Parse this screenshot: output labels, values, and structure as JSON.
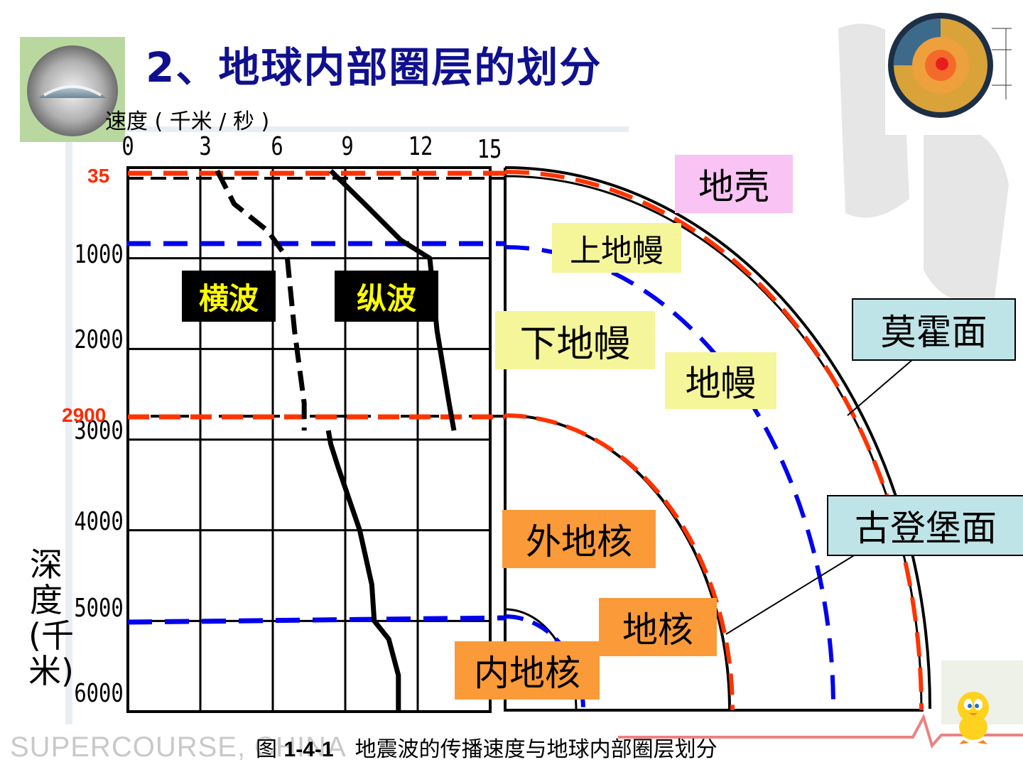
{
  "title": "2、地球内部圈层的划分",
  "speed_axis_label": "速度 ( 千米 / 秒 )",
  "depth_axis_label": "深度(千米)",
  "x_ticks": [
    "0",
    "3",
    "6",
    "9",
    "12",
    "15"
  ],
  "y_ticks": [
    "1000",
    "2000",
    "3000",
    "4000",
    "5000",
    "6000"
  ],
  "boundary_marks": {
    "moho": "35",
    "gutenberg": "2900"
  },
  "wave_labels": {
    "s_wave": "横波",
    "p_wave": "纵波"
  },
  "layer_labels": {
    "crust": "地壳",
    "upper_mantle": "上地幔",
    "lower_mantle": "下地幔",
    "mantle": "地幔",
    "outer_core": "外地核",
    "core": "地核",
    "inner_core": "内地核"
  },
  "callouts": {
    "moho_surface": "莫霍面",
    "gutenberg_surface": "古登堡面"
  },
  "caption": {
    "prefix": "图",
    "number": "1-4-1",
    "text": "地震波的传播速度与地球内部圈层划分"
  },
  "watermark": "SUPERCOURSE, CHINA",
  "colors": {
    "title": "#10108f",
    "boundary": "#ff3300",
    "sub_boundary": "#0000ee",
    "crust_box": "#f9c3f4",
    "mantle_box": "#f5f59a",
    "core_box": "#fa9a38",
    "callout_box": "#bfe4e8",
    "wave_box": "#000000",
    "wave_text": "#ffff00"
  },
  "icons": {
    "earth_photo": "earth-horizon-photo-icon",
    "earth_cutaway": "earth-cutaway-icon",
    "bird": "cartoon-bird-icon"
  },
  "chart_data": {
    "type": "line",
    "xlabel": "速度 ( 千米 / 秒 )",
    "ylabel": "深度(千米)",
    "xlim": [
      0,
      15
    ],
    "ylim": [
      0,
      6000
    ],
    "series": [
      {
        "name": "横波",
        "x": [
          3.7,
          4.4,
          5.8,
          6.6,
          6.9,
          7.3,
          7.3
        ],
        "y": [
          35,
          400,
          700,
          1000,
          1800,
          2600,
          2900
        ]
      },
      {
        "name": "纵波",
        "x": [
          8.4,
          9.8,
          11.3,
          12.5,
          12.8,
          13.3,
          13.5
        ],
        "y": [
          35,
          400,
          800,
          1000,
          1800,
          2600,
          2900
        ]
      },
      {
        "name": "",
        "x": [
          8.3,
          8.4,
          8.7,
          9.6,
          10.1,
          10.2,
          10.8,
          11.2,
          11.2
        ],
        "y": [
          2900,
          3050,
          3300,
          4000,
          4600,
          5000,
          5200,
          5600,
          6000
        ]
      }
    ]
  }
}
